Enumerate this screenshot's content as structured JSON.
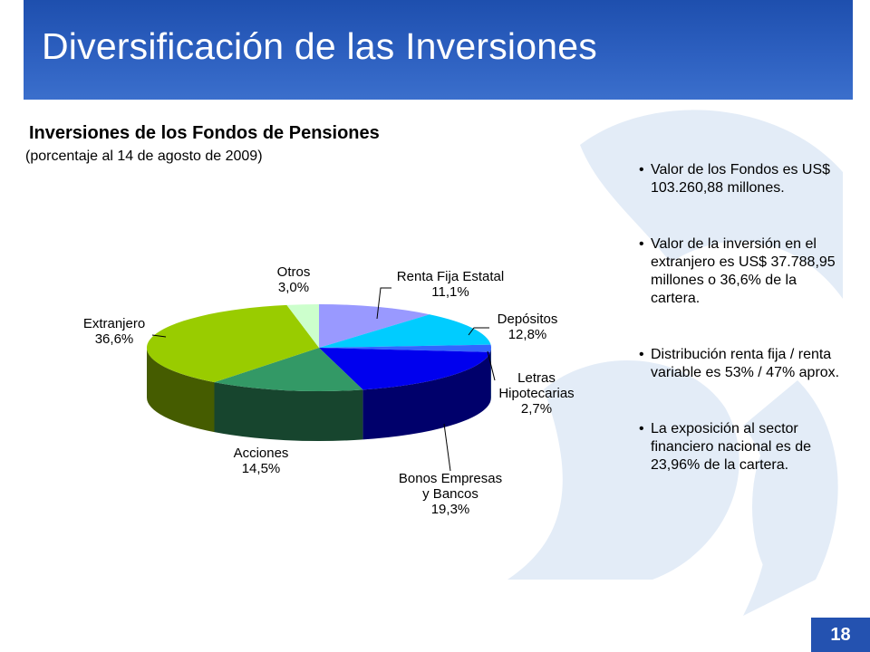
{
  "slide": {
    "title": "Diversificación de las Inversiones",
    "page_number": "18"
  },
  "colors": {
    "header": "#2d60c0",
    "watermark": "#e3ecf7",
    "page_badge": "#2452b0"
  },
  "chart_data": {
    "type": "pie",
    "style": "3d",
    "title": "Inversiones de los Fondos de Pensiones",
    "subtitle": "(porcentaje al 14 de agosto de 2009)",
    "unit": "%",
    "slices": [
      {
        "label": "Renta Fija Estatal",
        "display": "11,1%",
        "value": 11.1,
        "color": "#9999ff"
      },
      {
        "label": "Depósitos",
        "display": "12,8%",
        "value": 12.8,
        "color": "#00ccff"
      },
      {
        "label": "Letras Hipotecarias",
        "display": "2,7%",
        "value": 2.7,
        "color": "#3366ff"
      },
      {
        "label": "Bonos Empresas y Bancos",
        "display": "19,3%",
        "value": 19.3,
        "color": "#0000ee"
      },
      {
        "label": "Acciones",
        "display": "14,5%",
        "value": 14.5,
        "color": "#339966"
      },
      {
        "label": "Extranjero",
        "display": "36,6%",
        "value": 36.6,
        "color": "#99cc00"
      },
      {
        "label": "Otros",
        "display": "3,0%",
        "value": 3.0,
        "color": "#ccffcc"
      }
    ]
  },
  "bullets": [
    "Valor de los Fondos es US$ 103.260,88 millones.",
    "Valor de la inversión en el extranjero es US$ 37.788,95 millones o 36,6% de la cartera.",
    "Distribución renta fija / renta variable es 53% / 47% aprox.",
    "La exposición al sector financiero nacional es de 23,96% de la cartera."
  ]
}
